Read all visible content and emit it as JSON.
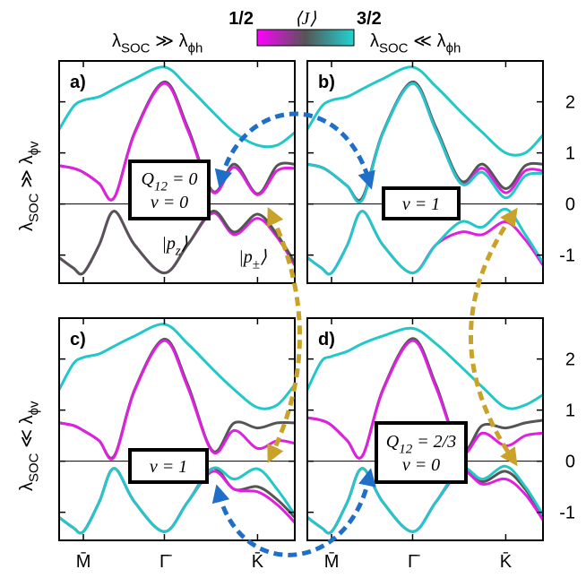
{
  "colorbar": {
    "min_label": "1/2",
    "label": "⟨J⟩",
    "max_label": "3/2",
    "colors": [
      "#ff00ff",
      "#555555",
      "#22d3d3"
    ]
  },
  "column_labels": [
    [
      "λ",
      "SOC",
      " ≫ λ",
      "ϕh"
    ],
    [
      "λ",
      "SOC",
      " ≪ λ",
      "ϕh"
    ]
  ],
  "row_labels": [
    [
      "λ",
      "SOC",
      " ≫ λ",
      "ϕv"
    ],
    [
      "λ",
      "SOC",
      " ≪ λ",
      "ϕv"
    ]
  ],
  "chart_data": [
    {
      "type": "line",
      "label": "a)",
      "x": [
        -0.26,
        -0.11,
        0,
        0.17,
        0.33,
        0.55,
        0.87,
        1.12,
        1.39,
        1.62,
        1.87,
        2.08,
        2.27
      ],
      "xlim": [
        -0.26,
        2.27
      ],
      "ylim": [
        -1.55,
        2.8
      ],
      "xticks": [
        {
          "value": 0,
          "label": "M̄"
        },
        {
          "value": 0.87,
          "label": "Γ̄"
        },
        {
          "value": 1.87,
          "label": "K̄"
        }
      ],
      "yticks": [
        -1,
        0,
        1,
        2
      ],
      "xtick_labels": false,
      "ytick_labels": false,
      "box": [
        [
          "Q",
          "12",
          " = 0"
        ],
        [
          "ν = 0"
        ]
      ],
      "kets": [
        [
          "|p",
          "z",
          "⟩"
        ],
        [
          "|p",
          "±",
          "⟩"
        ]
      ],
      "series": [
        {
          "color": "#555555",
          "values": [
            0.75,
            0.7,
            0.62,
            0.4,
            0.12,
            1.4,
            2.39,
            1.5,
            0.25,
            0.78,
            0.2,
            0.75,
            0.78
          ]
        },
        {
          "color": "#e020e0",
          "values": [
            0.75,
            0.7,
            0.62,
            0.4,
            0.12,
            1.38,
            2.36,
            1.45,
            0.23,
            0.72,
            0.18,
            0.65,
            0.7
          ]
        },
        {
          "color": "#22c8c8",
          "values": [
            1.46,
            1.9,
            2.03,
            2.1,
            2.25,
            2.45,
            2.68,
            2.3,
            1.8,
            1.4,
            1.15,
            1.15,
            1.4
          ]
        },
        {
          "color": "#e020e0",
          "values": [
            -1.05,
            -1.25,
            -1.35,
            -0.8,
            -0.14,
            -0.8,
            -1.35,
            -0.8,
            -0.18,
            -0.6,
            -0.28,
            -0.65,
            -1.2
          ]
        },
        {
          "color": "#555555",
          "values": [
            -1.05,
            -1.25,
            -1.35,
            -0.8,
            -0.14,
            -0.8,
            -1.35,
            -0.8,
            -0.14,
            -0.55,
            -0.2,
            -0.6,
            -1.15
          ]
        }
      ]
    },
    {
      "type": "line",
      "label": "b)",
      "x": [
        -0.26,
        -0.11,
        0,
        0.17,
        0.33,
        0.55,
        0.87,
        1.12,
        1.39,
        1.62,
        1.87,
        2.08,
        2.27
      ],
      "xlim": [
        -0.26,
        2.27
      ],
      "ylim": [
        -1.55,
        2.8
      ],
      "xticks": [
        {
          "value": 0,
          "label": "M̄"
        },
        {
          "value": 0.87,
          "label": "Γ̄"
        },
        {
          "value": 1.87,
          "label": "K̄"
        }
      ],
      "yticks": [
        -1,
        0,
        1,
        2
      ],
      "xtick_labels": false,
      "ytick_labels": true,
      "box": [
        [
          "ν = 1"
        ]
      ],
      "series": [
        {
          "color": "#555555",
          "values": [
            0.78,
            0.72,
            0.6,
            0.35,
            0.12,
            1.4,
            2.39,
            1.5,
            0.45,
            0.78,
            0.3,
            0.75,
            0.78
          ]
        },
        {
          "color": "#e020e0",
          "values": [
            0.78,
            0.72,
            0.6,
            0.35,
            0.08,
            1.38,
            2.36,
            1.45,
            0.4,
            0.7,
            0.22,
            0.65,
            0.65
          ]
        },
        {
          "color": "#22c8c8",
          "values": [
            0.78,
            0.72,
            0.6,
            0.35,
            0.08,
            1.38,
            2.36,
            1.45,
            0.4,
            0.62,
            0.12,
            0.55,
            0.6
          ]
        },
        {
          "color": "#22c8c8",
          "values": [
            1.46,
            1.9,
            2.03,
            2.1,
            2.25,
            2.45,
            2.68,
            2.3,
            1.8,
            1.4,
            1.0,
            1.0,
            1.35
          ]
        },
        {
          "color": "#e020e0",
          "values": [
            -1.05,
            -1.25,
            -1.35,
            -0.8,
            -0.14,
            -0.8,
            -1.35,
            -0.8,
            -0.55,
            -0.6,
            -0.35,
            -0.7,
            -1.2
          ]
        },
        {
          "color": "#22c8c8",
          "values": [
            -1.05,
            -1.25,
            -1.35,
            -0.8,
            -0.14,
            -0.8,
            -1.35,
            -0.8,
            -0.35,
            -0.45,
            -0.1,
            -0.6,
            -1.15
          ]
        }
      ]
    },
    {
      "type": "line",
      "label": "c)",
      "x": [
        -0.26,
        -0.11,
        0,
        0.17,
        0.33,
        0.55,
        0.87,
        1.12,
        1.39,
        1.62,
        1.87,
        2.08,
        2.27
      ],
      "xlim": [
        -0.26,
        2.27
      ],
      "ylim": [
        -1.55,
        2.8
      ],
      "xticks": [
        {
          "value": 0,
          "label": "M̄"
        },
        {
          "value": 0.87,
          "label": "Γ̄"
        },
        {
          "value": 1.87,
          "label": "K̄"
        }
      ],
      "yticks": [
        -1,
        0,
        1,
        2
      ],
      "xtick_labels": true,
      "ytick_labels": false,
      "box": [
        [
          "ν = 1"
        ]
      ],
      "series": [
        {
          "color": "#555555",
          "values": [
            0.75,
            0.7,
            0.6,
            0.4,
            0.1,
            1.4,
            2.39,
            1.5,
            0.2,
            0.75,
            0.65,
            0.75,
            0.75
          ]
        },
        {
          "color": "#e020e0",
          "values": [
            0.75,
            0.7,
            0.6,
            0.4,
            0.08,
            1.38,
            2.36,
            1.45,
            0.18,
            0.6,
            0.25,
            0.4,
            0.35
          ]
        },
        {
          "color": "#22c8c8",
          "values": [
            1.4,
            1.9,
            2.03,
            2.1,
            2.25,
            2.45,
            2.68,
            2.3,
            1.8,
            1.4,
            1.05,
            1.1,
            1.5
          ]
        },
        {
          "color": "#555555",
          "values": [
            -1.1,
            -1.3,
            -1.38,
            -0.8,
            -0.14,
            -0.8,
            -1.38,
            -0.8,
            -0.14,
            -0.55,
            -0.5,
            -0.75,
            -1.1
          ]
        },
        {
          "color": "#e020e0",
          "values": [
            -1.1,
            -1.3,
            -1.38,
            -0.8,
            -0.14,
            -0.8,
            -1.38,
            -0.8,
            -0.2,
            -0.55,
            -0.6,
            -0.85,
            -1.2
          ]
        },
        {
          "color": "#22c8c8",
          "values": [
            -1.1,
            -1.3,
            -1.38,
            -0.8,
            -0.14,
            -0.8,
            -1.38,
            -0.8,
            -0.14,
            -0.35,
            -0.15,
            -0.55,
            -1.05
          ]
        }
      ]
    },
    {
      "type": "line",
      "label": "d)",
      "x": [
        -0.26,
        -0.11,
        0,
        0.17,
        0.33,
        0.55,
        0.87,
        1.12,
        1.39,
        1.62,
        1.87,
        2.08,
        2.27
      ],
      "xlim": [
        -0.26,
        2.27
      ],
      "ylim": [
        -1.55,
        2.8
      ],
      "xticks": [
        {
          "value": 0,
          "label": "M̄"
        },
        {
          "value": 0.87,
          "label": "Γ̄"
        },
        {
          "value": 1.87,
          "label": "K̄"
        }
      ],
      "yticks": [
        -1,
        0,
        1,
        2
      ],
      "xtick_labels": true,
      "ytick_labels": true,
      "box": [
        [
          "Q",
          "12",
          " = 2/3"
        ],
        [
          "ν = 0"
        ]
      ],
      "series": [
        {
          "color": "#555555",
          "values": [
            0.85,
            0.8,
            0.7,
            0.4,
            0.1,
            1.4,
            2.4,
            1.5,
            0.2,
            0.7,
            0.65,
            0.75,
            0.8
          ]
        },
        {
          "color": "#e020e0",
          "values": [
            0.85,
            0.8,
            0.7,
            0.4,
            0.1,
            1.38,
            2.36,
            1.45,
            0.18,
            0.55,
            0.3,
            0.5,
            0.55
          ]
        },
        {
          "color": "#22c8c8",
          "values": [
            1.4,
            1.95,
            2.05,
            2.15,
            2.3,
            2.45,
            2.6,
            2.3,
            1.85,
            1.45,
            1.05,
            1.1,
            1.3
          ]
        },
        {
          "color": "#555555",
          "values": [
            -1.1,
            -1.3,
            -1.38,
            -0.8,
            -0.14,
            -0.8,
            -1.38,
            -0.8,
            -0.14,
            -0.4,
            -0.2,
            -0.55,
            -1.1
          ]
        },
        {
          "color": "#e020e0",
          "values": [
            -1.1,
            -1.3,
            -1.38,
            -0.8,
            -0.14,
            -0.8,
            -1.38,
            -0.8,
            -0.2,
            -0.45,
            -0.35,
            -0.65,
            -1.15
          ]
        },
        {
          "color": "#22c8c8",
          "values": [
            -1.1,
            -1.3,
            -1.38,
            -0.8,
            -0.14,
            -0.8,
            -1.38,
            -0.8,
            -0.14,
            -0.35,
            -0.1,
            -0.5,
            -1.05
          ]
        }
      ]
    }
  ]
}
